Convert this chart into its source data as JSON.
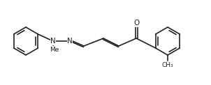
{
  "bg_color": "#ffffff",
  "line_color": "#222222",
  "line_width": 1.2,
  "figsize": [
    3.02,
    1.22
  ],
  "dpi": 100,
  "xlim": [
    0,
    302
  ],
  "ylim": [
    0,
    122
  ]
}
